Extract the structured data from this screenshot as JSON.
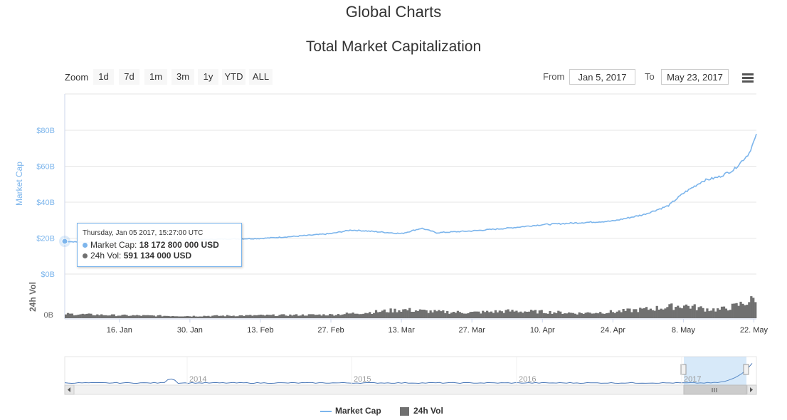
{
  "page": {
    "title": "Global Charts"
  },
  "toolbar": {
    "zoom_label": "Zoom",
    "zoom_buttons": [
      "1d",
      "7d",
      "1m",
      "3m",
      "1y",
      "YTD",
      "ALL"
    ],
    "from_label": "From",
    "from_value": "Jan 5, 2017",
    "to_label": "To",
    "to_value": "May 23, 2017",
    "menu_icon": "hamburger-menu-icon"
  },
  "colors": {
    "market_cap": "#7cb5ec",
    "volume": "#707070",
    "axis_text": "#666666",
    "navigator_mask": "#d6e6f7"
  },
  "tooltip": {
    "date": "Thursday, Jan 05 2017, 15:27:00 UTC",
    "series": [
      {
        "name": "Market Cap",
        "value": "18 172 800 000 USD"
      },
      {
        "name": "24h Vol",
        "value": "591 134 000 USD"
      }
    ]
  },
  "legend": [
    "Market Cap",
    "24h Vol"
  ],
  "chart_data": {
    "type": "line",
    "title": "Total Market Capitalization",
    "x_ticks": [
      "16. Jan",
      "30. Jan",
      "13. Feb",
      "27. Feb",
      "13. Mar",
      "27. Mar",
      "10. Apr",
      "24. Apr",
      "8. May",
      "22. May"
    ],
    "x_range": [
      "2017-01-05",
      "2017-05-23"
    ],
    "y_axis_market_cap": {
      "label": "Market Cap",
      "ticks": [
        "$0B",
        "$20B",
        "$40B",
        "$60B",
        "$80B"
      ],
      "range_billion_usd": [
        0,
        90
      ]
    },
    "y_axis_volume": {
      "label": "24h Vol",
      "ticks": [
        "0B"
      ]
    },
    "grid": true,
    "legend_position": "bottom-center",
    "series": [
      {
        "name": "Market Cap",
        "unit": "billion USD",
        "x": [
          "2017-01-05",
          "2017-01-10",
          "2017-01-16",
          "2017-01-23",
          "2017-01-30",
          "2017-02-06",
          "2017-02-13",
          "2017-02-20",
          "2017-02-27",
          "2017-03-03",
          "2017-03-06",
          "2017-03-13",
          "2017-03-17",
          "2017-03-20",
          "2017-03-27",
          "2017-04-03",
          "2017-04-10",
          "2017-04-17",
          "2017-04-24",
          "2017-04-30",
          "2017-05-05",
          "2017-05-08",
          "2017-05-12",
          "2017-05-15",
          "2017-05-18",
          "2017-05-21",
          "2017-05-23"
        ],
        "values": [
          18.2,
          17.5,
          18.5,
          18.5,
          19.0,
          19.5,
          19.8,
          21.0,
          22.5,
          24.5,
          24.0,
          22.5,
          25.5,
          23.0,
          24.0,
          25.5,
          27.5,
          28.5,
          29.5,
          33.0,
          38.0,
          45.0,
          52.0,
          54.0,
          58.0,
          67.0,
          80.5
        ]
      },
      {
        "name": "24h Vol",
        "unit": "billion USD",
        "x": [
          "2017-01-05",
          "2017-01-16",
          "2017-01-30",
          "2017-02-13",
          "2017-02-27",
          "2017-03-06",
          "2017-03-13",
          "2017-03-20",
          "2017-03-27",
          "2017-04-03",
          "2017-04-10",
          "2017-04-17",
          "2017-04-24",
          "2017-05-01",
          "2017-05-08",
          "2017-05-12",
          "2017-05-15",
          "2017-05-18",
          "2017-05-21",
          "2017-05-23"
        ],
        "values": [
          0.6,
          0.4,
          0.3,
          0.4,
          0.5,
          0.8,
          1.2,
          0.9,
          0.8,
          1.0,
          0.9,
          0.7,
          0.9,
          1.3,
          1.8,
          1.3,
          1.2,
          1.7,
          2.4,
          3.3
        ]
      }
    ],
    "navigator": {
      "x_ticks": [
        "2014",
        "2015",
        "2016",
        "2017"
      ],
      "selected_range": [
        "2017-01-05",
        "2017-05-23"
      ]
    }
  }
}
